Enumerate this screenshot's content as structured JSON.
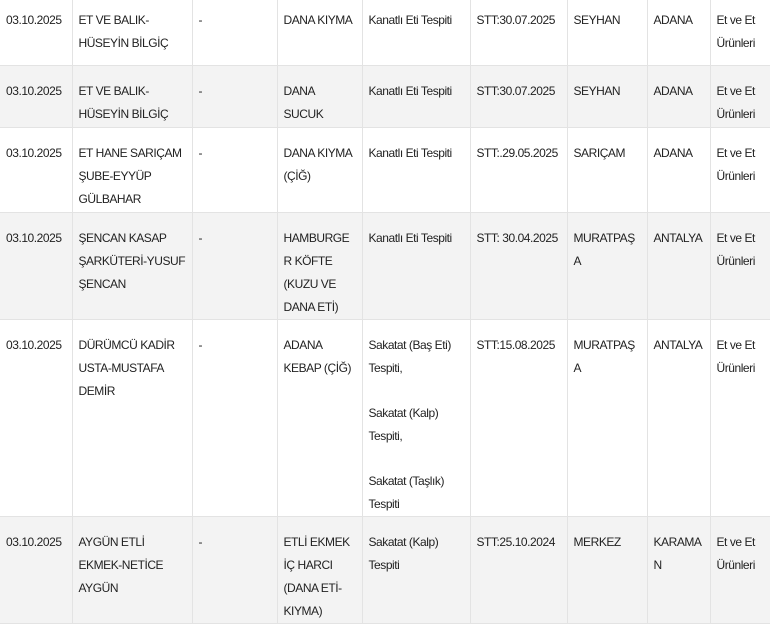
{
  "table": {
    "rows": [
      [
        "03.10.2025",
        "ET VE BALIK-HÜSEYİN BİLGİÇ",
        "-",
        "DANA KIYMA",
        [
          "Kanatlı Eti Tespiti"
        ],
        "STT:30.07.2025",
        "SEYHAN",
        "ADANA",
        "Et ve Et Ürünleri"
      ],
      [
        "03.10.2025",
        "ET VE BALIK-HÜSEYİN BİLGİÇ",
        "-",
        "DANA SUCUK",
        [
          "Kanatlı Eti Tespiti"
        ],
        "STT:30.07.2025",
        "SEYHAN",
        "ADANA",
        "Et ve Et Ürünleri"
      ],
      [
        "03.10.2025",
        "ET HANE SARIÇAM ŞUBE-EYYÜP GÜLBAHAR",
        "-",
        "DANA KIYMA (ÇİĞ)",
        [
          "Kanatlı Eti Tespiti"
        ],
        "STT:.29.05.2025",
        "SARIÇAM",
        "ADANA",
        "Et ve Et Ürünleri"
      ],
      [
        "03.10.2025",
        "ŞENCAN KASAP ŞARKÜTERİ-YUSUF ŞENCAN",
        "-",
        "HAMBURGER KÖFTE (KUZU VE DANA ETİ)",
        [
          "Kanatlı Eti Tespiti"
        ],
        "STT: 30.04.2025",
        "MURATPAŞA",
        "ANTALYA",
        "Et ve Et Ürünleri"
      ],
      [
        "03.10.2025",
        "DÜRÜMCÜ KADİR USTA-MUSTAFA DEMİR",
        "-",
        "ADANA KEBAP (ÇİĞ)",
        [
          "Sakatat (Baş Eti) Tespiti,",
          "Sakatat (Kalp) Tespiti,",
          "Sakatat (Taşlık) Tespiti"
        ],
        "STT:15.08.2025",
        "MURATPAŞA",
        "ANTALYA",
        "Et ve Et Ürünleri"
      ],
      [
        "03.10.2025",
        "AYGÜN ETLİ EKMEK-NETİCE AYGÜN",
        "-",
        "ETLİ EKMEK İÇ HARCI (DANA ETİ-KIYMA)",
        [
          "Sakatat (Kalp) Tespiti"
        ],
        "STT:25.10.2024",
        "MERKEZ",
        "KARAMAN",
        "Et ve Et Ürünleri"
      ]
    ]
  }
}
